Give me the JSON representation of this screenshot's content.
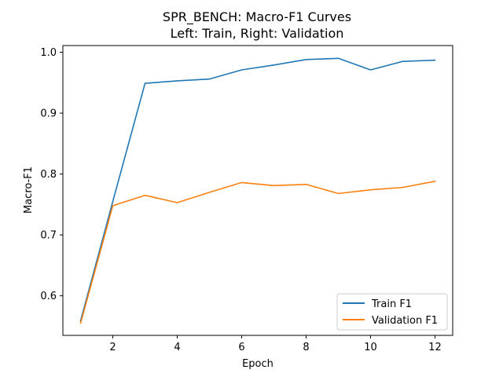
{
  "chart_data": {
    "type": "line",
    "title": "SPR_BENCH: Macro-F1 Curves",
    "subtitle": "Left: Train, Right: Validation",
    "xlabel": "Epoch",
    "ylabel": "Macro-F1",
    "x": [
      1,
      2,
      3,
      4,
      5,
      6,
      7,
      8,
      9,
      10,
      11,
      12
    ],
    "xlim": [
      0.45,
      12.55
    ],
    "ylim": [
      0.535,
      1.011
    ],
    "xticks": [
      2,
      4,
      6,
      8,
      10,
      12
    ],
    "yticks": [
      0.6,
      0.7,
      0.8,
      0.9,
      1.0
    ],
    "ytick_labels": [
      "0.6",
      "0.7",
      "0.8",
      "0.9",
      "1.0"
    ],
    "grid": false,
    "legend_position": "lower-right",
    "series": [
      {
        "name": "Train F1",
        "color": "#1f77b4",
        "values": [
          0.559,
          0.755,
          0.949,
          0.953,
          0.956,
          0.971,
          0.979,
          0.988,
          0.99,
          0.971,
          0.985,
          0.987
        ]
      },
      {
        "name": "Validation F1",
        "color": "#ff7f0e",
        "values": [
          0.555,
          0.748,
          0.765,
          0.753,
          0.77,
          0.786,
          0.781,
          0.783,
          0.768,
          0.774,
          0.778,
          0.788
        ]
      }
    ]
  }
}
